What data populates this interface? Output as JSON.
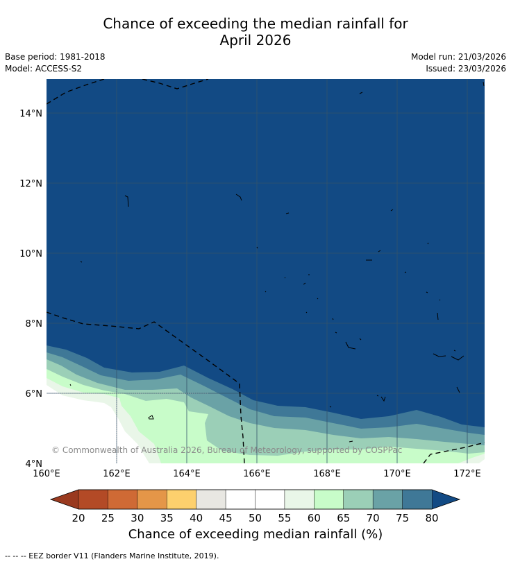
{
  "title": {
    "line1": "Chance of exceeding the median rainfall for",
    "line2": "April 2026"
  },
  "meta": {
    "base_period": "Base period: 1981-2018",
    "model": "Model: ACCESS-S2",
    "model_run": "Model run: 21/03/2026",
    "issued": "Issued: 23/03/2026"
  },
  "map": {
    "lat_labels": [
      "14°N",
      "12°N",
      "10°N",
      "8°N",
      "6°N",
      "4°N"
    ],
    "lon_labels": [
      "160°E",
      "162°E",
      "164°E",
      "166°E",
      "168°E",
      "170°E",
      "172°E"
    ],
    "copyright": "© Commonwealth of Australia 2026, Bureau of Meteorology, supported by COSPPac",
    "extent": {
      "lon_min": 160,
      "lon_max": 172.5,
      "lat_min": 4,
      "lat_max": 14.9
    }
  },
  "colorbar": {
    "ticks": [
      "20",
      "25",
      "30",
      "35",
      "40",
      "45",
      "50",
      "55",
      "60",
      "65",
      "70",
      "75",
      "80"
    ],
    "low_color": "#9a3a1f",
    "high_color": "#124a84",
    "colors": [
      "#b34a26",
      "#cf6a35",
      "#e49648",
      "#fdd06d",
      "#e8e7e2",
      "#ffffff",
      "#ffffff",
      "#e9f6e8",
      "#c8fcc9",
      "#9bcfb7",
      "#6aa2a6",
      "#3f7897"
    ],
    "label": "Chance of exceeding median rainfall (%)"
  },
  "footnote": "--  --  -- EEZ border V11 (Flanders Marine Institute, 2019)."
}
